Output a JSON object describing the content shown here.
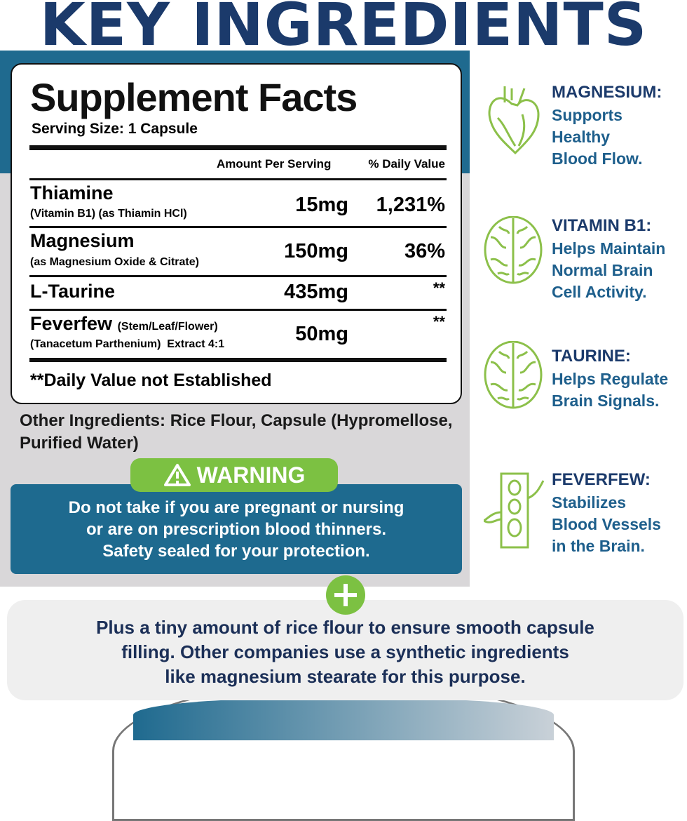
{
  "title": "KEY INGREDIENTS",
  "facts": {
    "title": "Supplement Facts",
    "serving": "Serving Size: 1 Capsule",
    "col_amount": "Amount Per Serving",
    "col_dv": "% Daily Value",
    "rows": [
      {
        "name": "Thiamine",
        "sub": "(Vitamin B1) (as Thiamin HCl)",
        "amount": "15mg",
        "dv": "1,231%"
      },
      {
        "name": "Magnesium",
        "sub": "(as Magnesium Oxide & Citrate)",
        "amount": "150mg",
        "dv": "36%"
      },
      {
        "name": "L-Taurine",
        "sub": "",
        "amount": "435mg",
        "dv": "**"
      },
      {
        "name": "Feverfew",
        "name_extra": "(Stem/Leaf/Flower)",
        "sub": "(Tanacetum Parthenium)  Extract 4:1",
        "amount": "50mg",
        "dv": "**"
      }
    ],
    "note": "**Daily Value not Established"
  },
  "other_ingredients": "Other Ingredients: Rice Flour, Capsule (Hypromellose, Purified Water)",
  "warning": {
    "label": "WARNING",
    "icon": "warning-triangle-icon",
    "lines": [
      "Do not take if you are pregnant or nursing",
      "or are on prescription blood thinners.",
      "Safety sealed for your protection."
    ]
  },
  "ingredients": [
    {
      "title": "MAGNESIUM:",
      "desc": [
        "Supports",
        "Healthy",
        "Blood Flow."
      ],
      "icon": "heart-icon"
    },
    {
      "title": "VITAMIN B1:",
      "desc": [
        "Helps Maintain",
        "Normal Brain",
        "Cell Activity."
      ],
      "icon": "brain-icon"
    },
    {
      "title": "TAURINE:",
      "desc": [
        "Helps Regulate",
        "Brain Signals."
      ],
      "icon": "brain-icon"
    },
    {
      "title": "FEVERFEW:",
      "desc": [
        "Stabilizes",
        "Blood Vessels",
        "in the Brain."
      ],
      "icon": "plant-stem-icon"
    }
  ],
  "plus_text": [
    "Plus a tiny amount of rice flour to ensure smooth capsule",
    "filling. Other companies use a synthetic ingredients",
    "like magnesium stearate for this purpose."
  ],
  "colors": {
    "navy": "#1b3a6b",
    "blue": "#1f6a8f",
    "green": "#7cc142",
    "grey": "#d9d7d9"
  }
}
